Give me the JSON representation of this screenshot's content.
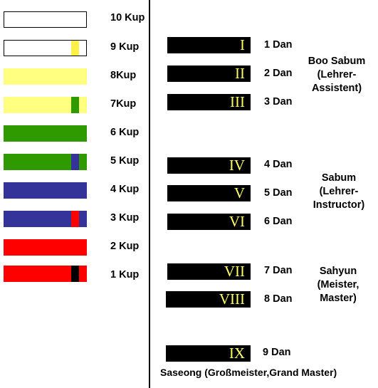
{
  "colors": {
    "white": "#ffffff",
    "yellow": "#ffff80",
    "light_yellow": "#fff04a",
    "green": "#2f9a00",
    "blue": "#333399",
    "red": "#ff0000",
    "black": "#000000",
    "numeral": "#ffff66"
  },
  "kup": [
    {
      "label": "10 Kup",
      "belt": "white",
      "stripe": null
    },
    {
      "label": "9 Kup",
      "belt": "white",
      "stripe": "yellow"
    },
    {
      "label": "8Kup",
      "belt": "yellow",
      "stripe": null
    },
    {
      "label": "7Kup",
      "belt": "yellow",
      "stripe": "green"
    },
    {
      "label": "6 Kup",
      "belt": "green",
      "stripe": null
    },
    {
      "label": "5 Kup",
      "belt": "green",
      "stripe": "blue"
    },
    {
      "label": "4 Kup",
      "belt": "blue",
      "stripe": null
    },
    {
      "label": "3 Kup",
      "belt": "blue",
      "stripe": "red"
    },
    {
      "label": "2 Kup",
      "belt": "red",
      "stripe": null
    },
    {
      "label": "1 Kup",
      "belt": "red",
      "stripe": "black"
    }
  ],
  "dan": [
    {
      "numeral": "I",
      "label": "1 Dan"
    },
    {
      "numeral": "II",
      "label": "2 Dan"
    },
    {
      "numeral": "III",
      "label": "3 Dan"
    },
    {
      "numeral": "IV",
      "label": "4 Dan"
    },
    {
      "numeral": "V",
      "label": "5 Dan"
    },
    {
      "numeral": "VI",
      "label": "6 Dan"
    },
    {
      "numeral": "VII",
      "label": "7 Dan"
    },
    {
      "numeral": "VIII",
      "label": "8 Dan"
    },
    {
      "numeral": "IX",
      "label": "9 Dan"
    }
  ],
  "titles": {
    "boo_sabum": [
      "Boo Sabum",
      "(Lehrer-",
      "Assistent)"
    ],
    "sabum": [
      "Sabum",
      "(Lehrer-",
      "Instructor)"
    ],
    "sahyun": [
      "Sahyun",
      "(Meister,",
      "Master)"
    ],
    "saseong": "Saseong (Großmeister,Grand Master)"
  }
}
